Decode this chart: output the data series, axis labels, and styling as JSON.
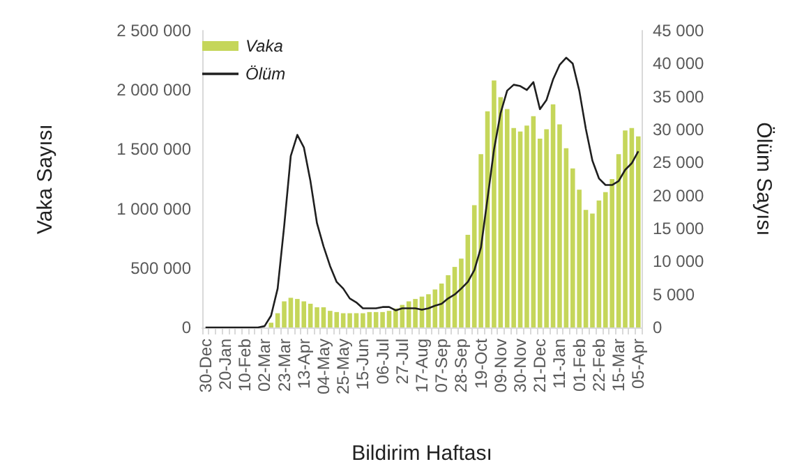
{
  "chart_data": {
    "type": "bar",
    "categories": [
      "30-Dec",
      null,
      null,
      "20-Jan",
      null,
      null,
      "10-Feb",
      null,
      null,
      "02-Mar",
      null,
      null,
      "23-Mar",
      null,
      null,
      "13-Apr",
      null,
      null,
      "04-May",
      null,
      null,
      "25-May",
      null,
      null,
      "15-Jun",
      null,
      null,
      "06-Jul",
      null,
      null,
      "27-Jul",
      null,
      null,
      "17-Aug",
      null,
      null,
      "07-Sep",
      null,
      null,
      "28-Sep",
      null,
      null,
      "19-Oct",
      null,
      null,
      "09-Nov",
      null,
      null,
      "30-Nov",
      null,
      null,
      "21-Dec",
      null,
      null,
      "11-Jan",
      null,
      null,
      "01-Feb",
      null,
      null,
      "22-Feb",
      null,
      null,
      "15-Mar",
      null,
      null,
      "05-Apr"
    ],
    "series": [
      {
        "name": "Vaka",
        "color": "#c5d65a",
        "values": [
          0,
          0,
          0,
          0,
          0,
          0,
          0,
          0,
          0,
          0,
          40000,
          120000,
          220000,
          250000,
          240000,
          220000,
          200000,
          170000,
          170000,
          140000,
          130000,
          120000,
          120000,
          120000,
          120000,
          130000,
          130000,
          130000,
          140000,
          160000,
          190000,
          220000,
          240000,
          260000,
          280000,
          320000,
          370000,
          440000,
          510000,
          580000,
          780000,
          1030000,
          1460000,
          1820000,
          2080000,
          1940000,
          1840000,
          1680000,
          1650000,
          1700000,
          1780000,
          1590000,
          1670000,
          1880000,
          1710000,
          1510000,
          1340000,
          1160000,
          990000,
          960000,
          1070000,
          1140000,
          1250000,
          1460000,
          1660000,
          1680000,
          1610000
        ]
      },
      {
        "name": "Ölüm",
        "type": "line",
        "axis": "y2",
        "color": "#1f1f1f",
        "values": [
          0,
          0,
          0,
          0,
          0,
          0,
          0,
          0,
          0,
          200,
          1800,
          5900,
          15400,
          26000,
          29200,
          27300,
          22200,
          15800,
          12300,
          9300,
          6900,
          5900,
          4400,
          3800,
          2900,
          2900,
          2900,
          3100,
          3100,
          2600,
          2900,
          2900,
          2900,
          2700,
          2900,
          3300,
          3600,
          4400,
          5000,
          5900,
          6900,
          8700,
          12100,
          19500,
          27000,
          32500,
          35900,
          36800,
          36600,
          36000,
          37200,
          33100,
          34500,
          37600,
          39800,
          40900,
          40000,
          35900,
          30100,
          25300,
          22600,
          21600,
          21600,
          22200,
          23900,
          24900,
          26700
        ]
      }
    ],
    "xlabel": "Bildirim Haftası",
    "ylabel": "Vaka Sayısı",
    "y2label": "Ölüm Sayısı",
    "ylim": [
      0,
      2500000
    ],
    "yticks": [
      0,
      {
        "value": 500000,
        "label": "500 000"
      },
      {
        "value": 1000000,
        "label": "1 000 000"
      },
      {
        "value": 1500000,
        "label": "1 500 000"
      },
      {
        "value": 2000000,
        "label": "2 000 000"
      },
      {
        "value": 2500000,
        "label": "2 500 000"
      }
    ],
    "y2lim": [
      0,
      45000
    ],
    "y2ticks": [
      0,
      {
        "value": 5000,
        "label": "5 000"
      },
      {
        "value": 10000,
        "label": "10 000"
      },
      {
        "value": 15000,
        "label": "15 000"
      },
      {
        "value": 20000,
        "label": "20 000"
      },
      {
        "value": 25000,
        "label": "25 000"
      },
      {
        "value": 30000,
        "label": "30 000"
      },
      {
        "value": 35000,
        "label": "35 000"
      },
      {
        "value": 40000,
        "label": "40 000"
      },
      {
        "value": 45000,
        "label": "45 000"
      }
    ],
    "grid": false,
    "legend": "top left"
  }
}
